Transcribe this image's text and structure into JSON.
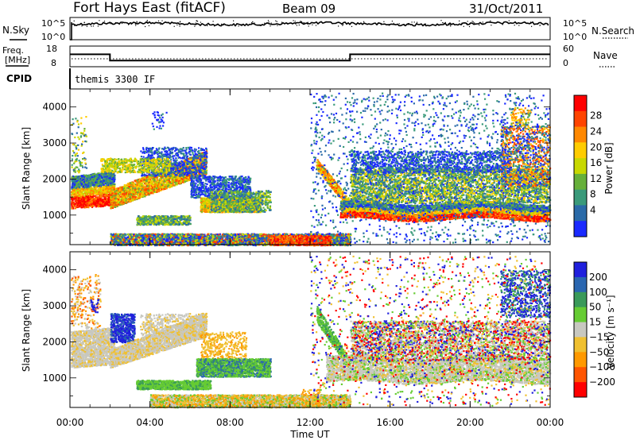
{
  "header": {
    "station": "Fort Hays East (fitACF)",
    "beam": "Beam 09",
    "date": "31/Oct/2011"
  },
  "noise_panel": {
    "left_label": "N.Sky",
    "right_label": "N.Search",
    "left_ticks": [
      "10^5",
      "10^0"
    ],
    "right_ticks": [
      "10^5",
      "10^0"
    ]
  },
  "freq_panel": {
    "left_label_1": "Freq.",
    "left_label_2": "[MHz]",
    "right_label": "Nave",
    "left_ticks": [
      "18",
      "8"
    ],
    "right_ticks": [
      "60",
      "0"
    ],
    "freq_steps": [
      {
        "t": 0.0,
        "mhz": 14.0
      },
      {
        "t": 2.0,
        "mhz": 11.0
      },
      {
        "t": 14.0,
        "mhz": 14.0
      },
      {
        "t": 24.0,
        "mhz": 14.0
      }
    ]
  },
  "cpid": {
    "label": "CPID",
    "program": "themis 3300 IF"
  },
  "chart_data": [
    {
      "type": "heatmap",
      "name": "power",
      "ylabel": "Slant Range [km]",
      "colorbar_label": "Power [dB]",
      "colorbar_ticks": [
        "28",
        "24",
        "20",
        "16",
        "12",
        "8",
        "4"
      ],
      "colorbar_colors": [
        "#ff0000",
        "#ff4400",
        "#ff8800",
        "#ffcc00",
        "#c8d800",
        "#66b03a",
        "#3a9a7a",
        "#2a6aa8",
        "#1a2aff"
      ],
      "y_ticks": [
        "4000",
        "3000",
        "2000",
        "1000"
      ],
      "ylim": [
        180,
        4500
      ],
      "xlim": [
        0,
        24
      ]
    },
    {
      "type": "heatmap",
      "name": "velocity",
      "ylabel": "Slant Range [km]",
      "colorbar_label": "Velocity [m s⁻¹]",
      "colorbar_ticks": [
        "200",
        "100",
        "50",
        "15",
        "−15",
        "−50",
        "−100",
        "−200"
      ],
      "colorbar_colors": [
        "#2020dd",
        "#2a66b0",
        "#3a9a5a",
        "#66cc33",
        "#c8c8c0",
        "#f0c030",
        "#ff9900",
        "#ff5500",
        "#ff0000"
      ],
      "y_ticks": [
        "4000",
        "3000",
        "2000",
        "1000"
      ],
      "ylim": [
        180,
        4500
      ],
      "xlim": [
        0,
        24
      ]
    }
  ],
  "x_axis": {
    "ticks": [
      "00:00",
      "04:00",
      "08:00",
      "12:00",
      "16:00",
      "20:00",
      "00:00"
    ],
    "tick_hours": [
      0,
      4,
      8,
      12,
      16,
      20,
      24
    ],
    "label": "Time UT"
  }
}
